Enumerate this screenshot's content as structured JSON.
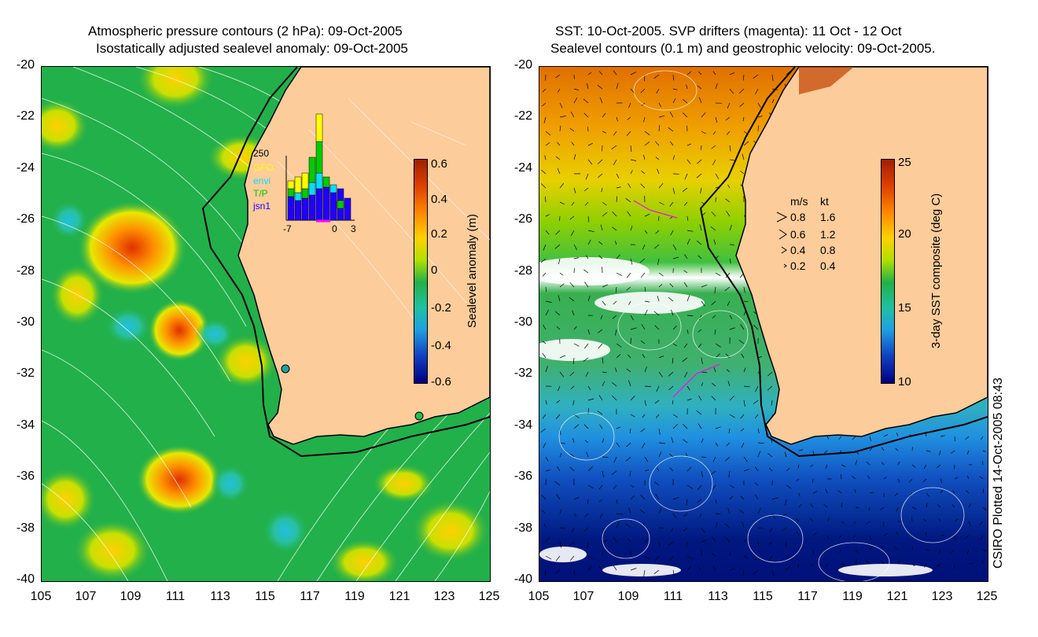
{
  "left_panel": {
    "title_line1": "Atmospheric pressure contours (2 hPa): 09-Oct-2005",
    "title_line2": "Isostatically adjusted sealevel anomaly: 09-Oct-2005",
    "colorbar_label": "Sealevel anomaly (m)",
    "colorbar_ticks": [
      "0.6",
      "0.4",
      "0.2",
      "0",
      "-0.2",
      "-0.4",
      "-0.6"
    ],
    "inset": {
      "ymax_label": "250",
      "satellites": [
        {
          "name": "GFO",
          "color": "#ffff00"
        },
        {
          "name": "envi",
          "color": "#00e0ff"
        },
        {
          "name": "T/P",
          "color": "#00cc00"
        },
        {
          "name": "jsn1",
          "color": "#2000ff"
        }
      ],
      "x_labels": [
        "-7",
        "0",
        "3"
      ]
    }
  },
  "right_panel": {
    "title_line1": "SST: 10-Oct-2005. SVP drifters (magenta): 11 Oct - 12 Oct",
    "title_line2": "Sealevel contours (0.1 m) and geostrophic velocity: 09-Oct-2005.",
    "colorbar_label": "3-day SST composite (deg C)",
    "colorbar_ticks": [
      "25",
      "20",
      "15",
      "10"
    ],
    "velocity_legend": {
      "header_ms": "m/s",
      "header_kt": "kt",
      "rows": [
        {
          "ms": "0.8",
          "kt": "1.6"
        },
        {
          "ms": "0.6",
          "kt": "1.2"
        },
        {
          "ms": "0.4",
          "kt": "0.8"
        },
        {
          "ms": "0.2",
          "kt": "0.4"
        }
      ]
    }
  },
  "axes": {
    "lat_ticks": [
      "-20",
      "-22",
      "-24",
      "-26",
      "-28",
      "-30",
      "-32",
      "-34",
      "-36",
      "-38",
      "-40"
    ],
    "lon_ticks": [
      "105",
      "107",
      "109",
      "111",
      "113",
      "115",
      "117",
      "119",
      "121",
      "123",
      "125"
    ]
  },
  "credit": "CSIRO Plotted 14-Oct-2005 08:43",
  "colors": {
    "land": "#fccc9a",
    "ocean_green": "#22b04a",
    "coast": "#000000"
  }
}
